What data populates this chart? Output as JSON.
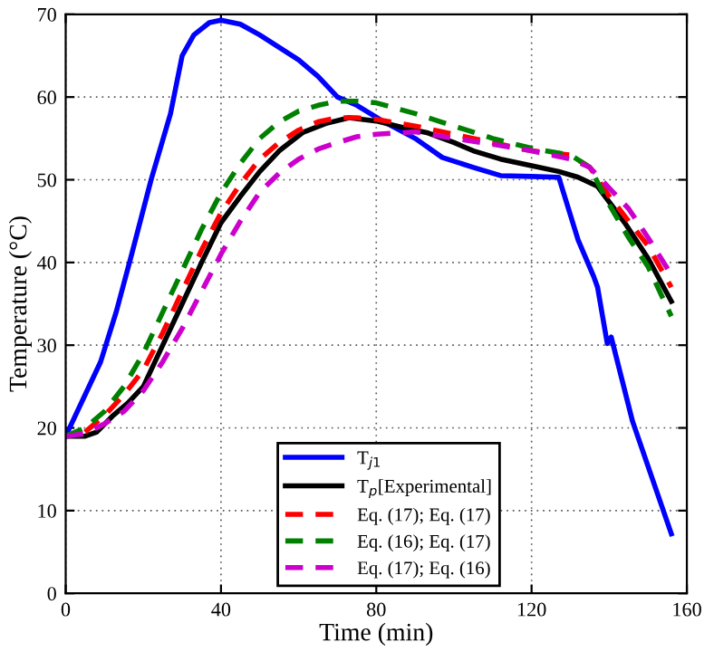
{
  "chart_data": {
    "type": "line",
    "xlabel": "Time (min)",
    "ylabel": "Temperature (°C)",
    "xlim": [
      0,
      160
    ],
    "xticks": [
      0,
      40,
      80,
      120,
      160
    ],
    "ylim": [
      0,
      70
    ],
    "yticks": [
      0,
      10,
      20,
      30,
      40,
      50,
      60,
      70
    ],
    "grid": true,
    "legend": "bottom",
    "line_style": "solid",
    "marker": "none",
    "series": [
      {
        "name": "T$_{j1}$",
        "color": "#0000ff",
        "x": [
          0,
          5,
          9,
          13,
          17,
          22,
          27,
          30,
          33,
          37,
          40,
          45,
          50,
          55,
          60,
          65,
          70,
          75,
          82,
          90,
          97,
          105,
          112,
          120,
          127,
          132,
          136,
          137,
          139.5,
          140.5,
          146,
          151,
          156
        ],
        "values": [
          19,
          24,
          28,
          34,
          41,
          50,
          58,
          65,
          67.5,
          69,
          69.3,
          68.8,
          67.5,
          66,
          64.5,
          62.5,
          60,
          59,
          57,
          55,
          52.7,
          51.5,
          50.5,
          50.4,
          50.3,
          42.7,
          38.3,
          37,
          30.2,
          31,
          20.8,
          14,
          7.2
        ]
      },
      {
        "name": "T$_{p}$[Experimental]",
        "color": "#000000",
        "x": [
          0,
          5,
          8,
          12,
          16,
          20,
          25,
          30,
          35,
          40,
          45,
          50,
          55,
          61,
          67,
          73,
          80,
          87,
          93,
          100,
          105,
          112,
          120,
          127,
          132,
          137,
          144,
          150,
          156
        ],
        "values": [
          19,
          19,
          19.5,
          21.4,
          23,
          25,
          30,
          35,
          40,
          44.8,
          48,
          51,
          53.5,
          55.7,
          56.8,
          57.5,
          57.1,
          56.3,
          55.7,
          54.5,
          53.5,
          52.5,
          51.7,
          51,
          50.3,
          49.2,
          44.8,
          40.5,
          35.3
        ]
      },
      {
        "name": "Eq. (17); Eq. (17)",
        "color": "#ff0000",
        "line_style": "dashed",
        "x": [
          5,
          10,
          15,
          20,
          25,
          30,
          35,
          40,
          45,
          50,
          55,
          60,
          65,
          70,
          75,
          80,
          90,
          100,
          110,
          120,
          130,
          135,
          140,
          145,
          150,
          156
        ],
        "values": [
          19.5,
          21.5,
          24,
          27,
          31.5,
          36.5,
          41.5,
          46,
          49.5,
          52.5,
          54.5,
          56,
          57,
          57.5,
          57.5,
          57.3,
          56.5,
          55.5,
          54.5,
          53.5,
          53,
          51.5,
          48,
          45,
          42,
          37
        ]
      },
      {
        "name": "Eq. (16); Eq. (17)",
        "color": "#008000",
        "line_style": "dashed",
        "x": [
          0,
          5,
          10,
          15,
          20,
          25,
          30,
          35,
          40,
          45,
          50,
          55,
          60,
          65,
          70,
          75,
          80,
          90,
          100,
          110,
          120,
          130,
          135,
          140,
          145,
          150,
          156
        ],
        "values": [
          19,
          20,
          22,
          25,
          29,
          34,
          39,
          44,
          48.4,
          52,
          55,
          57,
          58.3,
          59,
          59.5,
          59.5,
          59.3,
          58,
          56.5,
          55,
          53.8,
          53,
          51.5,
          47,
          43,
          39.5,
          33.5
        ]
      },
      {
        "name": "Eq. (17); Eq. (16)",
        "color": "#cc00cc",
        "line_style": "dashed",
        "x": [
          0,
          5,
          10,
          15,
          20,
          25,
          30,
          35,
          40,
          45,
          50,
          55,
          60,
          65,
          70,
          75,
          80,
          90,
          100,
          110,
          120,
          130,
          135,
          140,
          145,
          150,
          156
        ],
        "values": [
          19,
          19.3,
          20.5,
          22,
          24.5,
          28,
          32,
          36.5,
          41,
          45,
          48.5,
          50.8,
          52.5,
          53.7,
          54.5,
          55.2,
          55.5,
          55.8,
          55,
          54.3,
          53.5,
          52.5,
          51.5,
          49,
          46.5,
          43,
          38.5
        ]
      }
    ]
  }
}
